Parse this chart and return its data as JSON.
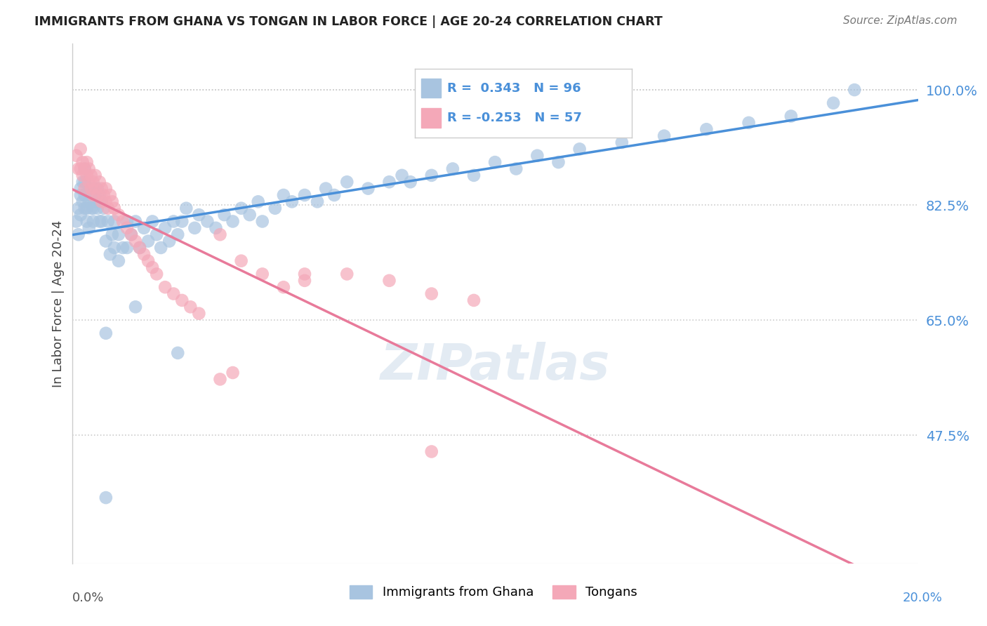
{
  "title": "IMMIGRANTS FROM GHANA VS TONGAN IN LABOR FORCE | AGE 20-24 CORRELATION CHART",
  "source": "Source: ZipAtlas.com",
  "ylabel": "In Labor Force | Age 20-24",
  "legend_label1": "Immigrants from Ghana",
  "legend_label2": "Tongans",
  "R1": 0.343,
  "N1": 96,
  "R2": -0.253,
  "N2": 57,
  "xlim": [
    0.0,
    20.0
  ],
  "ylim": [
    28.0,
    107.0
  ],
  "yticks": [
    47.5,
    65.0,
    82.5,
    100.0
  ],
  "color_ghana": "#a8c4e0",
  "color_tongan": "#f4a8b8",
  "trendline_ghana": "#4a90d9",
  "trendline_tongan": "#e87a9a",
  "color_rtxt": "#4a90d9",
  "color_ytick": "#4a90d9",
  "color_xtick_left": "#555555",
  "color_xtick_right": "#4a90d9",
  "ghana_x": [
    0.1,
    0.15,
    0.15,
    0.2,
    0.2,
    0.2,
    0.25,
    0.25,
    0.3,
    0.3,
    0.3,
    0.3,
    0.35,
    0.35,
    0.4,
    0.4,
    0.4,
    0.45,
    0.45,
    0.5,
    0.5,
    0.5,
    0.55,
    0.6,
    0.6,
    0.65,
    0.65,
    0.7,
    0.7,
    0.75,
    0.8,
    0.8,
    0.85,
    0.9,
    0.95,
    1.0,
    1.0,
    1.1,
    1.1,
    1.2,
    1.3,
    1.3,
    1.4,
    1.5,
    1.6,
    1.7,
    1.8,
    1.9,
    2.0,
    2.1,
    2.2,
    2.3,
    2.4,
    2.5,
    2.6,
    2.7,
    2.9,
    3.0,
    3.2,
    3.4,
    3.6,
    3.8,
    4.0,
    4.2,
    4.4,
    4.5,
    4.8,
    5.0,
    5.2,
    5.5,
    5.8,
    6.0,
    6.2,
    6.5,
    7.0,
    7.5,
    7.8,
    8.0,
    8.5,
    9.0,
    9.5,
    10.0,
    10.5,
    11.0,
    11.5,
    12.0,
    13.0,
    14.0,
    15.0,
    16.0,
    17.0,
    18.0,
    18.5,
    0.8,
    1.5,
    2.5
  ],
  "ghana_y": [
    80.0,
    78.0,
    82.0,
    84.0,
    81.0,
    85.0,
    83.0,
    86.0,
    82.0,
    84.0,
    86.0,
    88.0,
    82.0,
    80.0,
    85.0,
    83.0,
    79.0,
    84.0,
    82.0,
    85.0,
    82.0,
    80.0,
    83.0,
    85.0,
    82.0,
    84.0,
    80.0,
    83.0,
    80.0,
    82.0,
    38.0,
    77.0,
    80.0,
    75.0,
    78.0,
    80.0,
    76.0,
    78.0,
    74.0,
    76.0,
    80.0,
    76.0,
    78.0,
    80.0,
    76.0,
    79.0,
    77.0,
    80.0,
    78.0,
    76.0,
    79.0,
    77.0,
    80.0,
    78.0,
    80.0,
    82.0,
    79.0,
    81.0,
    80.0,
    79.0,
    81.0,
    80.0,
    82.0,
    81.0,
    83.0,
    80.0,
    82.0,
    84.0,
    83.0,
    84.0,
    83.0,
    85.0,
    84.0,
    86.0,
    85.0,
    86.0,
    87.0,
    86.0,
    87.0,
    88.0,
    87.0,
    89.0,
    88.0,
    90.0,
    89.0,
    91.0,
    92.0,
    93.0,
    94.0,
    95.0,
    96.0,
    98.0,
    100.0,
    63.0,
    67.0,
    60.0
  ],
  "tongan_x": [
    0.1,
    0.15,
    0.2,
    0.2,
    0.25,
    0.25,
    0.3,
    0.3,
    0.35,
    0.35,
    0.4,
    0.4,
    0.45,
    0.45,
    0.5,
    0.5,
    0.55,
    0.55,
    0.6,
    0.65,
    0.7,
    0.7,
    0.75,
    0.8,
    0.8,
    0.85,
    0.9,
    0.95,
    1.0,
    1.1,
    1.2,
    1.3,
    1.4,
    1.5,
    1.6,
    1.7,
    1.8,
    1.9,
    2.0,
    2.2,
    2.4,
    2.6,
    2.8,
    3.0,
    3.5,
    4.0,
    4.5,
    5.0,
    5.5,
    6.5,
    7.5,
    8.5,
    9.5,
    3.5,
    3.8,
    5.5,
    8.5
  ],
  "tongan_y": [
    90.0,
    88.0,
    88.0,
    91.0,
    87.0,
    89.0,
    88.0,
    85.0,
    87.0,
    89.0,
    86.0,
    88.0,
    85.0,
    87.0,
    84.0,
    86.0,
    85.0,
    87.0,
    84.0,
    86.0,
    83.0,
    85.0,
    84.0,
    83.0,
    85.0,
    82.0,
    84.0,
    83.0,
    82.0,
    81.0,
    80.0,
    79.0,
    78.0,
    77.0,
    76.0,
    75.0,
    74.0,
    73.0,
    72.0,
    70.0,
    69.0,
    68.0,
    67.0,
    66.0,
    78.0,
    74.0,
    72.0,
    70.0,
    71.0,
    72.0,
    71.0,
    69.0,
    68.0,
    56.0,
    57.0,
    72.0,
    45.0
  ]
}
